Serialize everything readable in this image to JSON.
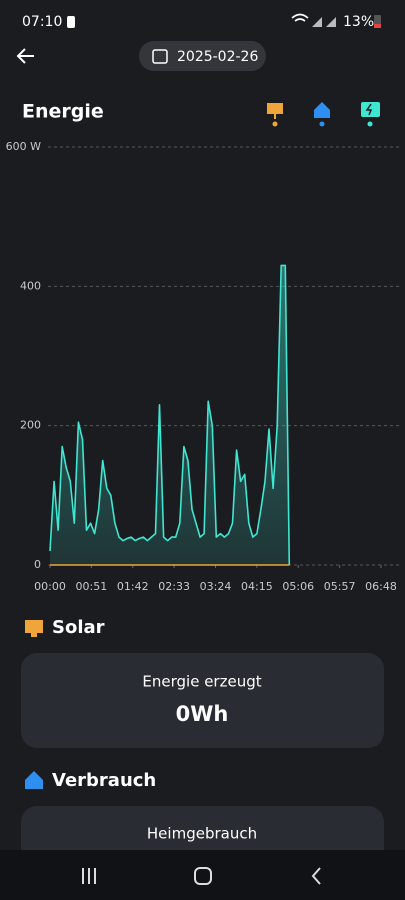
{
  "status_bar": {
    "time": "07:10",
    "battery": "13%"
  },
  "header": {
    "date": "2025-02-26"
  },
  "title": "Energie",
  "chart_data": {
    "type": "line",
    "x": [
      "00:00",
      "00:05",
      "00:10",
      "00:15",
      "00:20",
      "00:25",
      "00:30",
      "00:35",
      "00:40",
      "00:45",
      "00:50",
      "00:55",
      "01:00",
      "01:05",
      "01:10",
      "01:15",
      "01:20",
      "01:25",
      "01:30",
      "01:35",
      "01:40",
      "01:45",
      "01:50",
      "01:55",
      "02:00",
      "02:05",
      "02:10",
      "02:15",
      "02:20",
      "02:25",
      "02:30",
      "02:35",
      "02:40",
      "02:45",
      "02:50",
      "02:55",
      "03:00",
      "03:05",
      "03:10",
      "03:15",
      "03:20",
      "03:25",
      "03:30",
      "03:35",
      "03:40",
      "03:45",
      "03:50",
      "03:55",
      "04:00",
      "04:05",
      "04:10",
      "04:15",
      "04:20",
      "04:25",
      "04:30",
      "04:35",
      "04:40",
      "04:45",
      "04:50",
      "04:55"
    ],
    "series": [
      {
        "color": "#3fe6d2",
        "values": [
          20,
          120,
          50,
          170,
          140,
          120,
          60,
          205,
          180,
          50,
          60,
          45,
          80,
          150,
          110,
          100,
          60,
          40,
          35,
          38,
          40,
          35,
          38,
          40,
          35,
          40,
          45,
          230,
          40,
          35,
          40,
          40,
          60,
          170,
          150,
          80,
          60,
          40,
          45,
          235,
          200,
          40,
          45,
          40,
          45,
          60,
          165,
          120,
          130,
          60,
          40,
          45,
          80,
          120,
          195,
          110,
          200,
          430,
          430,
          0
        ]
      },
      {
        "color": "#f0a53a",
        "values": [
          0,
          0,
          0,
          0,
          0,
          0,
          0,
          0,
          0,
          0,
          0,
          0,
          0,
          0,
          0,
          0,
          0,
          0,
          0,
          0,
          0,
          0,
          0,
          0,
          0,
          0,
          0,
          0,
          0,
          0,
          0,
          0,
          0,
          0,
          0,
          0,
          0,
          0,
          0,
          0,
          0,
          0,
          0,
          0,
          0,
          0,
          0,
          0,
          0,
          0,
          0,
          0,
          0,
          0,
          0,
          0,
          0,
          0,
          0,
          0
        ]
      }
    ],
    "xlim": [
      "00:00",
      "06:48"
    ],
    "xticks": [
      "00:00",
      "00:51",
      "01:42",
      "02:33",
      "03:24",
      "04:15",
      "05:06",
      "05:57",
      "06:48"
    ],
    "ylim": [
      0,
      600
    ],
    "yticks": [
      0,
      200,
      400,
      {
        "value": 600,
        "label": "600 W"
      }
    ],
    "grid": true
  },
  "sections": [
    {
      "title": "Solar",
      "card_label": "Energie erzeugt",
      "card_value": "0Wh"
    },
    {
      "title": "Verbrauch",
      "card_label": "Heimgebrauch"
    }
  ]
}
